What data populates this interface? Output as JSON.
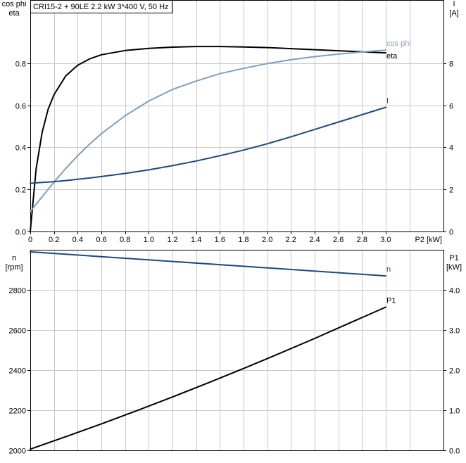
{
  "title": "CRI15-2 + 90LE   2.2 kW   3*400 V, 50 Hz",
  "colors": {
    "eta": "#000000",
    "cos_phi": "#7f9fbe",
    "I": "#1a4a80",
    "n": "#1a4a80",
    "P1": "#000000"
  },
  "chart_data": [
    {
      "type": "line",
      "name": "top",
      "x": [
        0,
        0.05,
        0.1,
        0.15,
        0.2,
        0.3,
        0.4,
        0.5,
        0.6,
        0.8,
        1.0,
        1.2,
        1.4,
        1.6,
        1.8,
        2.0,
        2.2,
        2.4,
        2.6,
        2.8,
        3.0
      ],
      "xlim": [
        0,
        3.4
      ],
      "xticks": [
        "0",
        "0.2",
        "0.4",
        "0.6",
        "0.8",
        "1.0",
        "1.2",
        "1.4",
        "1.6",
        "1.8",
        "2.0",
        "2.2",
        "2.4",
        "2.6",
        "2.8",
        "3.0"
      ],
      "xlabel": "P2 [kW]",
      "ylabel_left": [
        "cos phi",
        "eta"
      ],
      "ylim_left": [
        0,
        1.1
      ],
      "yticks_left": [
        "0.0",
        "0.2",
        "0.4",
        "0.6",
        "0.8"
      ],
      "ylabel_right": [
        "I",
        "[A]"
      ],
      "ylim_right": [
        0,
        11
      ],
      "yticks_right": [
        "0",
        "2",
        "4",
        "6",
        "8"
      ],
      "series": [
        {
          "name": "eta",
          "axis": "left",
          "values": [
            0,
            0.3,
            0.47,
            0.58,
            0.65,
            0.74,
            0.79,
            0.82,
            0.84,
            0.86,
            0.87,
            0.876,
            0.879,
            0.879,
            0.877,
            0.874,
            0.869,
            0.864,
            0.859,
            0.854,
            0.849
          ]
        },
        {
          "name": "cos phi",
          "axis": "left",
          "values": [
            0.095,
            0.13,
            0.165,
            0.2,
            0.235,
            0.3,
            0.36,
            0.415,
            0.465,
            0.55,
            0.62,
            0.675,
            0.715,
            0.75,
            0.775,
            0.798,
            0.816,
            0.831,
            0.843,
            0.853,
            0.862
          ]
        },
        {
          "name": "I",
          "axis": "right",
          "values": [
            2.29,
            2.31,
            2.33,
            2.35,
            2.37,
            2.42,
            2.48,
            2.54,
            2.61,
            2.76,
            2.93,
            3.13,
            3.35,
            3.6,
            3.87,
            4.17,
            4.5,
            4.85,
            5.2,
            5.55,
            5.9
          ]
        }
      ]
    },
    {
      "type": "line",
      "name": "bottom",
      "x": [
        0,
        3.0
      ],
      "xlim": [
        0,
        3.4
      ],
      "ylabel_left": [
        "n",
        "[rpm]"
      ],
      "ylim_left": [
        2000,
        3000
      ],
      "yticks_left": [
        "2000",
        "2200",
        "2400",
        "2600",
        "2800"
      ],
      "ylabel_right": [
        "P1",
        "[kW]"
      ],
      "ylim_right": [
        0,
        5
      ],
      "yticks_right": [
        "0.0",
        "1.0",
        "2.0",
        "3.0",
        "4.0"
      ],
      "series": [
        {
          "name": "n",
          "axis": "left",
          "x": [
            0,
            3.0
          ],
          "values": [
            2990,
            2870
          ]
        },
        {
          "name": "P1",
          "axis": "right",
          "x": [
            0,
            0.3,
            0.6,
            0.9,
            1.2,
            1.5,
            1.8,
            2.1,
            2.4,
            2.7,
            3.0
          ],
          "values": [
            0.03,
            0.34,
            0.66,
            0.99,
            1.33,
            1.68,
            2.04,
            2.41,
            2.79,
            3.18,
            3.57
          ]
        }
      ]
    }
  ]
}
